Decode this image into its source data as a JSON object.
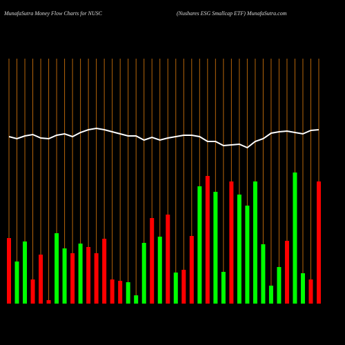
{
  "chart_data": {
    "type": "bar",
    "title": "MunafaSutra  Money Flow  Charts for NUSC",
    "subtitle": "(Nushares ESG Smallcap ETF) MunafaSutra.com",
    "categories": [
      null,
      null,
      null,
      null,
      null,
      null,
      null,
      null,
      null,
      null,
      null,
      null,
      null,
      null,
      null,
      null,
      null,
      null,
      null,
      null,
      null,
      null,
      null,
      null,
      null,
      null,
      null,
      null,
      null,
      null,
      null,
      null,
      null,
      null,
      null,
      null,
      null,
      null,
      null,
      null
    ],
    "ylim": [
      0,
      280
    ],
    "grid_color": "#b8660a",
    "series": [
      {
        "type": "bar",
        "values": [
          95,
          61,
          90,
          35,
          71,
          5,
          102,
          80,
          73,
          87,
          82,
          73,
          94,
          35,
          33,
          31,
          12,
          88,
          124,
          97,
          129,
          45,
          49,
          98,
          170,
          185,
          162,
          46,
          177,
          158,
          142,
          177,
          86,
          26,
          53,
          91,
          190,
          44,
          35,
          177
        ],
        "colors": [
          "#ff0000",
          "#00ff00",
          "#00ff00",
          "#ff0000",
          "#ff0000",
          "#ff0000",
          "#00ff00",
          "#00ff00",
          "#ff0000",
          "#00ff00",
          "#ff0000",
          "#ff0000",
          "#ff0000",
          "#ff0000",
          "#ff0000",
          "#00ff00",
          "#00ff00",
          "#00ff00",
          "#ff0000",
          "#00ff00",
          "#ff0000",
          "#00ff00",
          "#ff0000",
          "#ff0000",
          "#00ff00",
          "#ff0000",
          "#00ff00",
          "#00ff00",
          "#ff0000",
          "#00ff00",
          "#00ff00",
          "#00ff00",
          "#00ff00",
          "#00ff00",
          "#00ff00",
          "#ff0000",
          "#00ff00",
          "#00ff00",
          "#ff0000",
          "#ff0000"
        ]
      },
      {
        "type": "line",
        "color": "#ffffff",
        "values": [
          242,
          239,
          243,
          245,
          240,
          239,
          244,
          246,
          242,
          248,
          252,
          254,
          252,
          249,
          246,
          243,
          243,
          237,
          241,
          237,
          240,
          242,
          244,
          244,
          242,
          235,
          235,
          229,
          230,
          231,
          226,
          235,
          239,
          247,
          249,
          250,
          248,
          246,
          251,
          252
        ]
      }
    ]
  }
}
